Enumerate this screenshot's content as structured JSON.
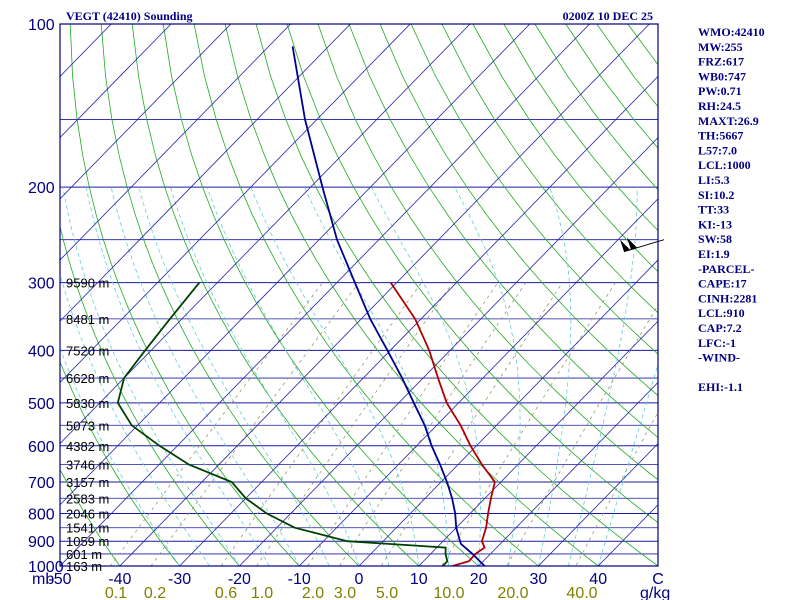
{
  "chart_data": {
    "type": "line",
    "subtype": "skew-T log-P sounding",
    "title": "VEGT (42410) Sounding",
    "valid_time": "0200Z 10 DEC 25",
    "pressure_axis": {
      "label": "mb",
      "range": [
        1000,
        100
      ],
      "ticks": [
        "100",
        "200",
        "300",
        "400",
        "500",
        "600",
        "700",
        "800",
        "900",
        "1000"
      ]
    },
    "temperature_axis": {
      "range": [
        -50,
        50
      ],
      "ticks": [
        "-50",
        "-40",
        "-30",
        "-20",
        "-10",
        "0",
        "10",
        "20",
        "30",
        "40",
        "C"
      ]
    },
    "mixing_ratio_axis": {
      "unit": "g/kg",
      "ticks": [
        "0.1",
        "0.2",
        "0.6",
        "1.0",
        "2.0",
        "3.0",
        "5.0",
        "10.0",
        "20.0",
        "40.0"
      ]
    },
    "heights": [
      {
        "p": 1000,
        "label": "163 m"
      },
      {
        "p": 950,
        "label": "601 m"
      },
      {
        "p": 900,
        "label": "1059 m"
      },
      {
        "p": 850,
        "label": "1541 m"
      },
      {
        "p": 800,
        "label": "2046 m"
      },
      {
        "p": 750,
        "label": "2583 m"
      },
      {
        "p": 700,
        "label": "3157 m"
      },
      {
        "p": 650,
        "label": "3746 m"
      },
      {
        "p": 600,
        "label": "4382 m"
      },
      {
        "p": 550,
        "label": "5073 m"
      },
      {
        "p": 500,
        "label": "5830 m"
      },
      {
        "p": 450,
        "label": "6628 m"
      },
      {
        "p": 400,
        "label": "7520 m"
      },
      {
        "p": 350,
        "label": "8481 m"
      },
      {
        "p": 300,
        "label": "9590 m"
      }
    ],
    "series": [
      {
        "name": "temperature",
        "color": "#b00000",
        "points": [
          {
            "p": 1000,
            "t": 15.6
          },
          {
            "p": 980,
            "t": 17.6
          },
          {
            "p": 950,
            "t": 17.5
          },
          {
            "p": 925,
            "t": 18.0
          },
          {
            "p": 900,
            "t": 16.5
          },
          {
            "p": 850,
            "t": 15.0
          },
          {
            "p": 800,
            "t": 13.0
          },
          {
            "p": 750,
            "t": 11.0
          },
          {
            "p": 700,
            "t": 9.0
          },
          {
            "p": 650,
            "t": 4.0
          },
          {
            "p": 600,
            "t": -1.0
          },
          {
            "p": 550,
            "t": -6.0
          },
          {
            "p": 500,
            "t": -12.0
          },
          {
            "p": 450,
            "t": -17.5
          },
          {
            "p": 400,
            "t": -23.5
          },
          {
            "p": 350,
            "t": -31.0
          },
          {
            "p": 300,
            "t": -41.0
          }
        ]
      },
      {
        "name": "dewpoint",
        "color": "#004000",
        "points": [
          {
            "p": 1000,
            "t": 14.0
          },
          {
            "p": 980,
            "t": 14.0
          },
          {
            "p": 950,
            "t": 12.5
          },
          {
            "p": 925,
            "t": 11.5
          },
          {
            "p": 900,
            "t": -6.0
          },
          {
            "p": 850,
            "t": -17.0
          },
          {
            "p": 800,
            "t": -24.0
          },
          {
            "p": 750,
            "t": -30.0
          },
          {
            "p": 700,
            "t": -35.0
          },
          {
            "p": 650,
            "t": -45.0
          },
          {
            "p": 600,
            "t": -53.0
          },
          {
            "p": 550,
            "t": -61.0
          },
          {
            "p": 500,
            "t": -67.0
          },
          {
            "p": 450,
            "t": -70.0
          },
          {
            "p": 400,
            "t": -71.0
          },
          {
            "p": 350,
            "t": -72.0
          },
          {
            "p": 300,
            "t": -73.0
          }
        ]
      },
      {
        "name": "parcel",
        "color": "#000090",
        "points": [
          {
            "p": 1000,
            "t": 21.0
          },
          {
            "p": 950,
            "t": 17.0
          },
          {
            "p": 910,
            "t": 13.4
          },
          {
            "p": 850,
            "t": 10.0
          },
          {
            "p": 800,
            "t": 7.5
          },
          {
            "p": 750,
            "t": 4.5
          },
          {
            "p": 700,
            "t": 1.0
          },
          {
            "p": 650,
            "t": -3.0
          },
          {
            "p": 600,
            "t": -7.5
          },
          {
            "p": 550,
            "t": -12.0
          },
          {
            "p": 500,
            "t": -17.5
          },
          {
            "p": 450,
            "t": -23.5
          },
          {
            "p": 400,
            "t": -30.5
          },
          {
            "p": 350,
            "t": -38.5
          },
          {
            "p": 300,
            "t": -47.0
          },
          {
            "p": 250,
            "t": -57.0
          },
          {
            "p": 200,
            "t": -68.0
          },
          {
            "p": 150,
            "t": -82.0
          },
          {
            "p": 110,
            "t": -96.0
          }
        ]
      }
    ],
    "wind_barbs": [
      {
        "p": 250,
        "direction_deg": 250,
        "speed_kt": 100
      }
    ],
    "indices": [
      "WMO:42410",
      "MW:255",
      "FRZ:617",
      "WB0:747",
      "PW:0.71",
      "RH:24.5",
      "MAXT:26.9",
      "TH:5667",
      "L57:7.0",
      "LCL:1000",
      "LI:5.3",
      "SI:10.2",
      "TT:33",
      "KI:-13",
      "SW:58",
      "EI:1.9",
      "-PARCEL-",
      "CAPE:17",
      "CINH:2281",
      "LCL:910",
      "CAP:7.2",
      "LFC:-1",
      "-WIND-",
      "",
      "EHI:-1.1"
    ],
    "colors": {
      "frame": "#000080",
      "isobar": "#1a1aa0",
      "isotherm": "#2222aa",
      "dry_adiabat": "#22aa22",
      "moist_adiabat": "#66ccdd",
      "mixing_ratio": "#999966"
    }
  }
}
